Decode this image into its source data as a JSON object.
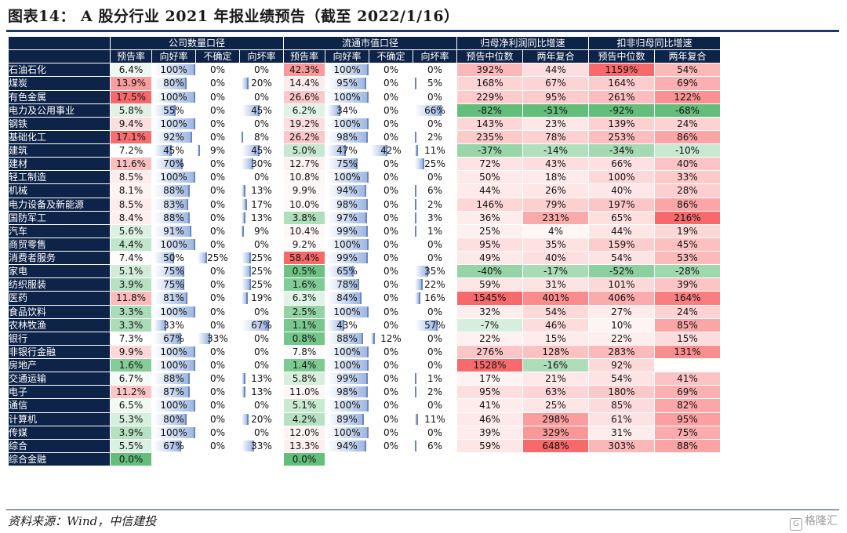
{
  "title": "图表14： A 股分行业 2021 年报业绩预告（截至 2022/1/16）",
  "source": "资料来源：Wind，中信建投",
  "watermark": "格隆汇",
  "table": {
    "group_headers": [
      "公司数量口径",
      "流通市值口径",
      "归母净利润同比增速",
      "扣非归母同比增速"
    ],
    "sub_headers": [
      "预告率",
      "向好率",
      "不确定",
      "向坏率",
      "预告率",
      "向好率",
      "不确定",
      "向坏率",
      "预告中位数",
      "两年复合",
      "预告中位数",
      "两年复合"
    ],
    "rows": [
      {
        "name": "石油石化",
        "v": [
          "6.4%",
          "100%",
          "0%",
          "0%",
          "42.3%",
          "100%",
          "0%",
          "0%",
          "392%",
          "44%",
          "1159%",
          "54%"
        ]
      },
      {
        "name": "煤炭",
        "v": [
          "13.9%",
          "80%",
          "0%",
          "20%",
          "14.4%",
          "95%",
          "0%",
          "5%",
          "168%",
          "67%",
          "164%",
          "69%"
        ]
      },
      {
        "name": "有色金属",
        "v": [
          "17.5%",
          "100%",
          "0%",
          "0%",
          "26.6%",
          "100%",
          "0%",
          "0%",
          "229%",
          "95%",
          "261%",
          "122%"
        ]
      },
      {
        "name": "电力及公用事业",
        "v": [
          "5.8%",
          "55%",
          "0%",
          "45%",
          "6.2%",
          "34%",
          "0%",
          "66%",
          "-82%",
          "-51%",
          "-92%",
          "-68%"
        ]
      },
      {
        "name": "钢铁",
        "v": [
          "9.4%",
          "100%",
          "0%",
          "0%",
          "19.2%",
          "100%",
          "0%",
          "0%",
          "143%",
          "23%",
          "139%",
          "24%"
        ]
      },
      {
        "name": "基础化工",
        "v": [
          "17.1%",
          "92%",
          "0%",
          "8%",
          "26.2%",
          "98%",
          "0%",
          "2%",
          "235%",
          "78%",
          "253%",
          "86%"
        ]
      },
      {
        "name": "建筑",
        "v": [
          "7.2%",
          "45%",
          "9%",
          "45%",
          "5.0%",
          "47%",
          "42%",
          "11%",
          "-37%",
          "-14%",
          "-34%",
          "-10%"
        ]
      },
      {
        "name": "建材",
        "v": [
          "11.6%",
          "70%",
          "0%",
          "30%",
          "12.7%",
          "75%",
          "0%",
          "25%",
          "72%",
          "43%",
          "66%",
          "40%"
        ]
      },
      {
        "name": "轻工制造",
        "v": [
          "8.5%",
          "100%",
          "0%",
          "0%",
          "10.8%",
          "100%",
          "0%",
          "0%",
          "50%",
          "18%",
          "100%",
          "33%"
        ]
      },
      {
        "name": "机械",
        "v": [
          "8.1%",
          "88%",
          "0%",
          "13%",
          "9.9%",
          "94%",
          "0%",
          "6%",
          "44%",
          "26%",
          "40%",
          "28%"
        ]
      },
      {
        "name": "电力设备及新能源",
        "v": [
          "8.5%",
          "83%",
          "0%",
          "17%",
          "10.0%",
          "98%",
          "0%",
          "2%",
          "146%",
          "79%",
          "197%",
          "86%"
        ]
      },
      {
        "name": "国防军工",
        "v": [
          "8.4%",
          "88%",
          "0%",
          "13%",
          "3.8%",
          "97%",
          "0%",
          "3%",
          "36%",
          "231%",
          "65%",
          "216%"
        ]
      },
      {
        "name": "汽车",
        "v": [
          "5.6%",
          "91%",
          "0%",
          "9%",
          "10.4%",
          "99%",
          "0%",
          "1%",
          "25%",
          "4%",
          "44%",
          "19%"
        ]
      },
      {
        "name": "商贸零售",
        "v": [
          "4.4%",
          "100%",
          "0%",
          "0%",
          "9.2%",
          "100%",
          "0%",
          "0%",
          "95%",
          "35%",
          "159%",
          "45%"
        ]
      },
      {
        "name": "消费者服务",
        "v": [
          "7.4%",
          "50%",
          "25%",
          "25%",
          "58.4%",
          "99%",
          "0%",
          "0%",
          "49%",
          "40%",
          "54%",
          "53%"
        ]
      },
      {
        "name": "家电",
        "v": [
          "5.1%",
          "75%",
          "0%",
          "25%",
          "0.5%",
          "65%",
          "0%",
          "35%",
          "-40%",
          "-17%",
          "-52%",
          "-28%"
        ]
      },
      {
        "name": "纺织服装",
        "v": [
          "3.9%",
          "75%",
          "0%",
          "25%",
          "1.6%",
          "78%",
          "0%",
          "22%",
          "59%",
          "31%",
          "101%",
          "39%"
        ]
      },
      {
        "name": "医药",
        "v": [
          "11.8%",
          "81%",
          "0%",
          "19%",
          "6.3%",
          "84%",
          "0%",
          "16%",
          "1545%",
          "401%",
          "406%",
          "164%"
        ]
      },
      {
        "name": "食品饮料",
        "v": [
          "3.3%",
          "100%",
          "0%",
          "0%",
          "2.5%",
          "100%",
          "0%",
          "0%",
          "32%",
          "54%",
          "27%",
          "24%"
        ]
      },
      {
        "name": "农林牧渔",
        "v": [
          "3.3%",
          "33%",
          "0%",
          "67%",
          "1.1%",
          "43%",
          "0%",
          "57%",
          "-7%",
          "46%",
          "10%",
          "85%"
        ]
      },
      {
        "name": "银行",
        "v": [
          "7.3%",
          "67%",
          "33%",
          "0%",
          "0.8%",
          "88%",
          "12%",
          "0%",
          "22%",
          "15%",
          "22%",
          "15%"
        ]
      },
      {
        "name": "非银行金融",
        "v": [
          "9.9%",
          "100%",
          "0%",
          "0%",
          "7.8%",
          "100%",
          "0%",
          "0%",
          "276%",
          "128%",
          "283%",
          "131%"
        ]
      },
      {
        "name": "房地产",
        "v": [
          "1.6%",
          "100%",
          "0%",
          "0%",
          "1.4%",
          "100%",
          "0%",
          "0%",
          "1528%",
          "-16%",
          "92%",
          ""
        ]
      },
      {
        "name": "交通运输",
        "v": [
          "6.7%",
          "88%",
          "0%",
          "13%",
          "5.8%",
          "99%",
          "0%",
          "1%",
          "17%",
          "21%",
          "54%",
          "41%"
        ]
      },
      {
        "name": "电子",
        "v": [
          "11.2%",
          "87%",
          "0%",
          "13%",
          "11.0%",
          "98%",
          "0%",
          "2%",
          "95%",
          "63%",
          "180%",
          "69%"
        ]
      },
      {
        "name": "通信",
        "v": [
          "6.5%",
          "100%",
          "0%",
          "0%",
          "5.1%",
          "100%",
          "0%",
          "0%",
          "41%",
          "25%",
          "85%",
          "82%"
        ]
      },
      {
        "name": "计算机",
        "v": [
          "5.3%",
          "80%",
          "0%",
          "20%",
          "4.2%",
          "89%",
          "0%",
          "11%",
          "46%",
          "298%",
          "61%",
          "95%"
        ]
      },
      {
        "name": "传媒",
        "v": [
          "3.9%",
          "100%",
          "0%",
          "0%",
          "12.0%",
          "100%",
          "0%",
          "0%",
          "39%",
          "329%",
          "31%",
          "75%"
        ]
      },
      {
        "name": "综合",
        "v": [
          "5.5%",
          "67%",
          "0%",
          "33%",
          "13.3%",
          "94%",
          "0%",
          "6%",
          "59%",
          "648%",
          "303%",
          "88%"
        ]
      },
      {
        "name": "综合金融",
        "v": [
          "0.0%",
          "",
          "",
          "",
          "0.0%",
          "",
          "",
          "",
          "",
          "",
          "",
          ""
        ]
      }
    ]
  },
  "colors": {
    "header_bg": "#0e2348",
    "title_rule": "#1f3864",
    "positive_max": "#f8696b",
    "negative_max": "#63be7b",
    "bar_fill": "#9fb6e0"
  }
}
